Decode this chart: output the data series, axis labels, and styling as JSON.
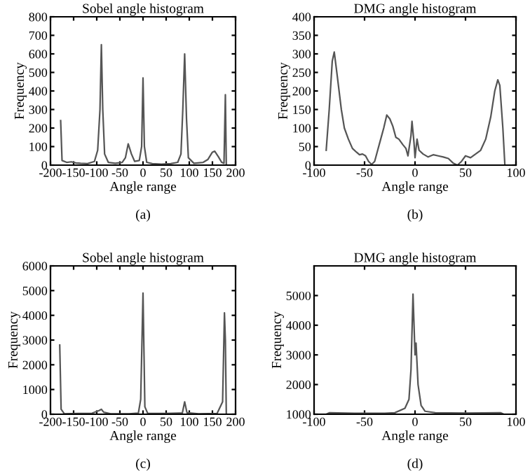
{
  "chart_data": [
    {
      "type": "line",
      "title": "Sobel angle histogram",
      "xlabel": "Angle range",
      "ylabel": "Frequency",
      "annotations": [
        "(a)"
      ],
      "xlim": [
        -200,
        200
      ],
      "xticks": [
        -200,
        -150,
        -100,
        -50,
        0,
        50,
        100,
        150,
        200
      ],
      "ylim": [
        0,
        800
      ],
      "yticks": [
        0,
        100,
        200,
        300,
        400,
        500,
        600,
        700,
        800
      ],
      "grid": false,
      "series": [
        {
          "color": "#555555",
          "x": [
            -178,
            -175,
            -165,
            -155,
            -145,
            -135,
            -120,
            -105,
            -98,
            -93,
            -90,
            -87,
            -83,
            -75,
            -60,
            -45,
            -38,
            -32,
            -25,
            -18,
            -8,
            -3,
            0,
            3,
            8,
            20,
            40,
            60,
            75,
            82,
            86,
            90,
            94,
            98,
            110,
            130,
            140,
            150,
            155,
            163,
            170,
            175,
            178,
            180
          ],
          "values": [
            240,
            25,
            15,
            18,
            12,
            10,
            8,
            20,
            80,
            300,
            650,
            300,
            60,
            15,
            10,
            15,
            40,
            115,
            60,
            20,
            25,
            100,
            470,
            100,
            15,
            8,
            5,
            8,
            15,
            60,
            300,
            600,
            250,
            40,
            10,
            15,
            30,
            70,
            75,
            45,
            15,
            10,
            380,
            0
          ]
        }
      ]
    },
    {
      "type": "line",
      "title": "DMG angle histogram",
      "xlabel": "Angle range",
      "ylabel": "Frequency",
      "annotations": [
        "(b)"
      ],
      "xlim": [
        -100,
        100
      ],
      "xticks": [
        -100,
        -50,
        0,
        50,
        100
      ],
      "ylim": [
        0,
        400
      ],
      "yticks": [
        0,
        50,
        100,
        150,
        200,
        250,
        300,
        350,
        400
      ],
      "grid": false,
      "series": [
        {
          "color": "#555555",
          "x": [
            -88,
            -85,
            -82,
            -80,
            -77,
            -73,
            -70,
            -66,
            -62,
            -58,
            -55,
            -52,
            -49,
            -46,
            -43,
            -40,
            -37,
            -34,
            -31,
            -28,
            -25,
            -22,
            -19,
            -16,
            -12,
            -9,
            -7,
            -4,
            -3,
            -1,
            0,
            2,
            4,
            8,
            13,
            18,
            23,
            28,
            33,
            38,
            42,
            46,
            50,
            55,
            60,
            65,
            70,
            75,
            79,
            82,
            84,
            87,
            89
          ],
          "values": [
            40,
            150,
            280,
            305,
            240,
            150,
            100,
            70,
            45,
            35,
            28,
            30,
            25,
            10,
            2,
            10,
            40,
            70,
            100,
            135,
            125,
            105,
            75,
            70,
            55,
            45,
            25,
            80,
            118,
            60,
            20,
            70,
            40,
            30,
            22,
            28,
            25,
            22,
            18,
            5,
            0,
            10,
            25,
            20,
            30,
            40,
            70,
            130,
            200,
            230,
            215,
            100,
            0
          ]
        }
      ]
    },
    {
      "type": "line",
      "title": "Sobel angle histogram",
      "xlabel": "Angle range",
      "ylabel": "Frequency",
      "annotations": [
        "(c)"
      ],
      "xlim": [
        -200,
        200
      ],
      "xticks": [
        -200,
        -150,
        -100,
        -50,
        0,
        50,
        100,
        150,
        200
      ],
      "ylim": [
        0,
        6000
      ],
      "yticks": [
        0,
        1000,
        2000,
        3000,
        4000,
        5000,
        6000
      ],
      "grid": false,
      "series": [
        {
          "color": "#555555",
          "x": [
            -180,
            -177,
            -170,
            -140,
            -110,
            -95,
            -90,
            -85,
            -70,
            -30,
            -10,
            -5,
            0,
            4,
            10,
            50,
            85,
            90,
            95,
            120,
            160,
            172,
            176,
            178,
            180
          ],
          "values": [
            2800,
            200,
            20,
            30,
            40,
            150,
            200,
            80,
            20,
            20,
            50,
            600,
            4900,
            300,
            40,
            30,
            50,
            500,
            60,
            20,
            30,
            500,
            4100,
            3000,
            0
          ]
        }
      ]
    },
    {
      "type": "line",
      "title": "DMG angle histogram",
      "xlabel": "Angle range",
      "ylabel": "Frequency",
      "annotations": [
        "(d)"
      ],
      "xlim": [
        -100,
        100
      ],
      "xticks": [
        -100,
        -50,
        0,
        50,
        100
      ],
      "ylim": [
        1000,
        6000
      ],
      "yticks": [
        1000,
        2000,
        3000,
        4000,
        5000
      ],
      "grid": false,
      "series": [
        {
          "color": "#555555",
          "x": [
            -88,
            -85,
            -60,
            -30,
            -20,
            -10,
            -6,
            -4,
            -2,
            0,
            1,
            3,
            6,
            10,
            20,
            50,
            85,
            88
          ],
          "values": [
            1000,
            1050,
            1030,
            1030,
            1050,
            1200,
            1500,
            2500,
            5050,
            3000,
            3400,
            2000,
            1300,
            1100,
            1050,
            1040,
            1050,
            1000
          ]
        }
      ]
    }
  ]
}
